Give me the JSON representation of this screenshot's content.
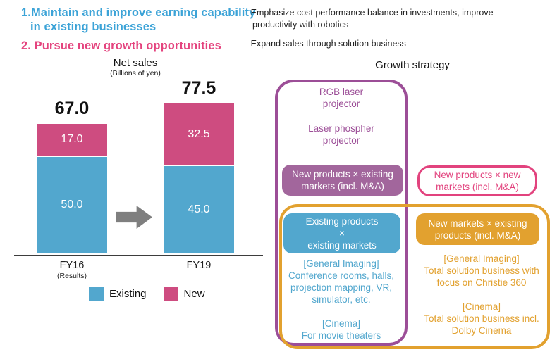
{
  "colors": {
    "headline_blue": "#3ca3d7",
    "headline_pink": "#e4437e",
    "bar_existing_blue": "#52a7ce",
    "bar_new_pink": "#ce4c80",
    "purple_border": "#9c4e97",
    "purple_pill_fill": "#a2669c",
    "pink_pill": "#e2437e",
    "orange": "#e2a12f",
    "arrow_gray": "#7f7f7f"
  },
  "header": {
    "point1_line1": "1.Maintain and improve earning capability",
    "point1_line2": "in existing businesses",
    "point2": "2. Pursue new growth opportunities",
    "bullet1": "- Emphasize cost performance balance in investments, improve\nproductivity with robotics",
    "bullet2": "- Expand sales through solution business"
  },
  "chart": {
    "title": "Net sales",
    "unit_note": "(Billions of yen)",
    "sublabels": [
      "(Results)",
      ""
    ]
  },
  "chart_data": {
    "type": "bar",
    "stacked": true,
    "title": "Net sales",
    "unit": "Billions of yen",
    "categories": [
      "FY16",
      "FY19"
    ],
    "series": [
      {
        "name": "Existing",
        "color": "#52a7ce",
        "values": [
          50.0,
          45.0
        ]
      },
      {
        "name": "New",
        "color": "#ce4c80",
        "values": [
          17.0,
          32.5
        ]
      }
    ],
    "totals": [
      67.0,
      77.5
    ],
    "legend_position": "bottom",
    "ylim": [
      0,
      80
    ]
  },
  "strategy": {
    "title": "Growth strategy",
    "products_box": {
      "item1": "RGB laser\nprojector",
      "item2": "Laser phospher\nprojector",
      "pill": "New products × existing\nmarkets (incl. M&A)"
    },
    "new_new_pill": "New products × new\nmarkets (incl. M&A)",
    "existing_cell": {
      "pill": "Existing products\n×\nexisting markets",
      "body": "[General Imaging]\nConference rooms, halls,\nprojection mapping, VR,\nsimulator, etc.\n\n[Cinema]\nFor movie theaters"
    },
    "markets_cell": {
      "pill": "New markets × existing\nproducts (incl. M&A)",
      "body": "[General Imaging]\nTotal solution business with\nfocus on Christie 360\n\n[Cinema]\nTotal solution business incl.\nDolby Cinema"
    }
  }
}
